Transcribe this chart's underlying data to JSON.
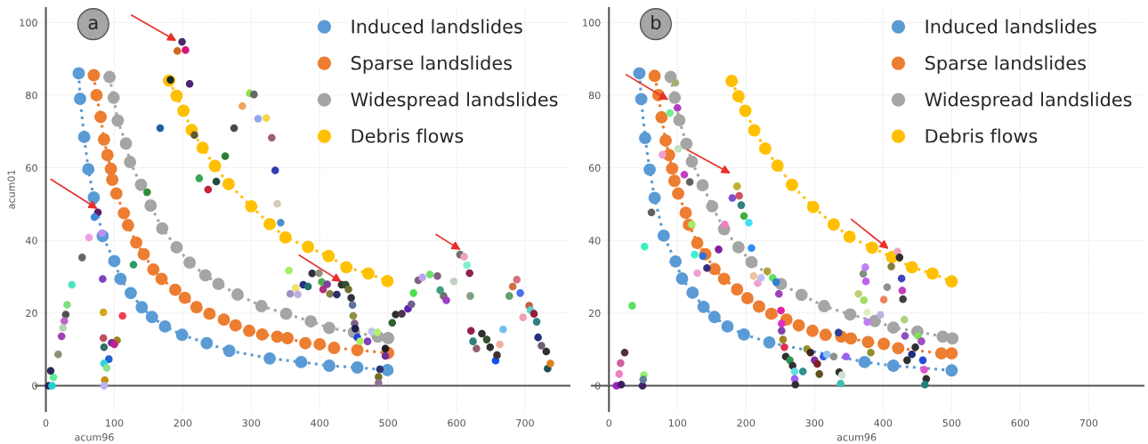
{
  "chart_data": [
    {
      "type": "scatter",
      "xlabel": "acum96",
      "ylabel": "acum01",
      "annotations": [
        "a"
      ],
      "xlim": [
        -15,
        765
      ],
      "ylim": [
        -7,
        104
      ],
      "xticks": [
        0,
        100,
        200,
        300,
        400,
        500,
        600,
        700
      ],
      "yticks": [
        0,
        20,
        40,
        60,
        80,
        100
      ],
      "grid": true,
      "legend": "top right",
      "marker": "circle",
      "line_style": "dotted",
      "series": [
        {
          "name": "Induced landslides",
          "type": "line",
          "color": "#5b9bd5",
          "x": [
            48,
            50,
            56,
            62,
            70,
            83,
            100,
            109,
            124,
            140,
            155,
            174,
            199,
            235,
            268,
            327,
            373,
            414,
            455,
            499
          ],
          "values": [
            86,
            79,
            68.5,
            59.6,
            51.8,
            41.2,
            34.3,
            29.4,
            25.5,
            21.6,
            18.9,
            16.3,
            14,
            11.7,
            9.6,
            7.5,
            6.5,
            5.5,
            5,
            4.3
          ]
        },
        {
          "name": "Sparse landslides",
          "type": "line",
          "color": "#ed7d31",
          "x": [
            70,
            74,
            80,
            85,
            90,
            95,
            97,
            103,
            114,
            120,
            132,
            143,
            157,
            169,
            189,
            203,
            220,
            239,
            260,
            277,
            297,
            316,
            338,
            353,
            379,
            400,
            421,
            455,
            500
          ],
          "values": [
            85.5,
            80,
            74,
            67.8,
            63.5,
            59.7,
            56.7,
            52.9,
            47.5,
            44.2,
            39.4,
            36.2,
            32,
            29.4,
            26.4,
            24.2,
            21.6,
            19.8,
            18.2,
            16.6,
            15.1,
            14.1,
            13.5,
            13.1,
            11.7,
            11.4,
            10.4,
            9.8,
            9
          ]
        },
        {
          "name": "Widespread landslides",
          "type": "line",
          "color": "#a5a5a5",
          "x": [
            93,
            99,
            105,
            117,
            123,
            139,
            153,
            170,
            191,
            210,
            233,
            252,
            280,
            315,
            351,
            387,
            414,
            450,
            485,
            500
          ],
          "values": [
            85,
            79.3,
            73,
            66.7,
            61.6,
            55.3,
            49.6,
            43.3,
            38.1,
            33.9,
            30.4,
            28,
            25.1,
            21.9,
            19.8,
            17.7,
            15.9,
            14.7,
            13.5,
            13.1
          ]
        },
        {
          "name": "Debris flows",
          "type": "line",
          "color": "#ffc000",
          "x": [
            180,
            191,
            201,
            213,
            229,
            247,
            267,
            300,
            327,
            350,
            383,
            413,
            439,
            471,
            499
          ],
          "values": [
            84,
            79.8,
            75.7,
            70.4,
            65.5,
            60.5,
            55.5,
            49.4,
            44.5,
            40.8,
            38.2,
            35.7,
            32.6,
            30.9,
            28.8
          ]
        },
        {
          "x": [
            199,
            192,
            204,
            182,
            210,
            167,
            217,
            262,
            249,
            224,
            237,
            298,
            304,
            287,
            310,
            322,
            275,
            330,
            335,
            338,
            343,
            148,
            76,
            71,
            63,
            82,
            53,
            128,
            83,
            38,
            31,
            29,
            27,
            25,
            23,
            18,
            11,
            7,
            4,
            9,
            84,
            112,
            84,
            104,
            85,
            96,
            100,
            92,
            85,
            89,
            86,
            85,
            355,
            365,
            357,
            368,
            389,
            399,
            376,
            383,
            403,
            411,
            405,
            415,
            425,
            432,
            438,
            442,
            446,
            448,
            449,
            451,
            452,
            455,
            459,
            470,
            476,
            484,
            488,
            486,
            486,
            496,
            496,
            506,
            511,
            520,
            529,
            534,
            537,
            544,
            550,
            561,
            572,
            576,
            581,
            585,
            596,
            605,
            611,
            615,
            619,
            620,
            621,
            624,
            629,
            637,
            644,
            649,
            657,
            659,
            663,
            668,
            677,
            682,
            688,
            693,
            697,
            706,
            708,
            713,
            717,
            719,
            724,
            731,
            733,
            737
          ],
          "values": [
            94.7,
            92.2,
            92.4,
            84.2,
            83.1,
            70.9,
            69,
            63.2,
            56.2,
            57.1,
            54,
            80.5,
            80.2,
            77,
            73.5,
            73.7,
            70.9,
            68.3,
            59.3,
            50.1,
            44.9,
            53.3,
            47.7,
            46.4,
            40.8,
            42,
            35.3,
            33.3,
            29.4,
            27.8,
            22.3,
            19.6,
            17.8,
            15.9,
            13.6,
            8.6,
            2.3,
            4.1,
            0,
            0,
            20.2,
            19.2,
            13.1,
            12.5,
            10.6,
            11.8,
            11.4,
            7.3,
            6.1,
            4.9,
            1.5,
            0,
            31.7,
            26.9,
            25.3,
            25.1,
            30.9,
            31,
            27.8,
            27.3,
            28.6,
            27.9,
            26.5,
            25.3,
            25.1,
            27.8,
            27.8,
            26.5,
            24.2,
            22.2,
            19.2,
            17.1,
            15.7,
            13.3,
            12.2,
            12.2,
            14.9,
            14.7,
            4.5,
            2.4,
            0.8,
            10.2,
            8.2,
            17.3,
            19.6,
            19.8,
            21.2,
            22.4,
            25.5,
            29,
            29.8,
            30.6,
            30.2,
            26.3,
            24.7,
            23.5,
            28.7,
            36.1,
            35.5,
            33.2,
            31,
            24.7,
            15.1,
            12.2,
            10.2,
            14.3,
            12.7,
            10.6,
            6.9,
            8.4,
            11.4,
            15.5,
            24.7,
            27.3,
            29.2,
            25.5,
            18.8,
            22,
            20.8,
            19.8,
            17.6,
            13.3,
            11,
            9.4,
            4.7,
            6.1
          ],
          "colors": [
            "#4b2a6b",
            "#d2691e",
            "#d6137a",
            "#1e2b24",
            "#4a2470",
            "#1f5fa8",
            "#5e5a2a",
            "#2e7d32",
            "#234a45",
            "#3aa655",
            "#c2273a",
            "#8ee04a",
            "#666666",
            "#f2a35e",
            "#8fa8f0",
            "#f5d547",
            "#4a4a4a",
            "#a0606e",
            "#3040b0",
            "#d8c8b8",
            "#4a90d0",
            "#2e8b3a",
            "#5a1a6a",
            "#3a8ae0",
            "#f0a0e0",
            "#c090f0",
            "#666666",
            "#2e9a6a",
            "#8040c0",
            "#50e0c0",
            "#80e080",
            "#505050",
            "#c060d0",
            "#b0d8b0",
            "#a040b0",
            "#909070",
            "#60f090",
            "#2a2a5a",
            "#28285a",
            "#20d0d0",
            "#d0a820",
            "#f04050",
            "#c05060",
            "#a08020",
            "#307060",
            "#7030a0",
            "#c02090",
            "#2060d0",
            "#30d0e0",
            "#90e090",
            "#c09010",
            "#c0b0f0",
            "#a0f060",
            "#f0e070",
            "#a090c0",
            "#c0b0e0",
            "#303040",
            "#909080",
            "#283080",
            "#207070",
            "#50b050",
            "#8040a0",
            "#b03080",
            "#808040",
            "#283070",
            "#303030",
            "#305030",
            "#707030",
            "#303040",
            "#6070a0",
            "#909040",
            "#806080",
            "#202050",
            "#2040e0",
            "#b0f060",
            "#8040c0",
            "#c0c0f0",
            "#b0f070",
            "#303070",
            "#707020",
            "#907090",
            "#202020",
            "#7030a0",
            "#306030",
            "#303030",
            "#503050",
            "#6020b0",
            "#706090",
            "#50e050",
            "#806080",
            "#c0a0f0",
            "#70e070",
            "#806080",
            "#40a080",
            "#707070",
            "#a040c0",
            "#c0d0c0",
            "#707070",
            "#f0a0c0",
            "#80f0d0",
            "#902050",
            "#80a080",
            "#902050",
            "#308080",
            "#906070",
            "#303030",
            "#305030",
            "#303030",
            "#1050f0",
            "#403030",
            "#f0b0a0",
            "#70c0f0",
            "#60a070",
            "#d07040",
            "#d07080",
            "#5070f0",
            "#f0a0b0",
            "#c06040",
            "#60d0d0",
            "#902040",
            "#308080",
            "#203080",
            "#706070",
            "#303030",
            "#205050",
            "#e08020"
          ]
        }
      ]
    },
    {
      "type": "scatter",
      "xlabel": "acum96",
      "annotations": [
        "b"
      ],
      "xlim": [
        -25,
        780
      ],
      "ylim": [
        -7,
        104
      ],
      "xticks": [
        0,
        100,
        200,
        300,
        400,
        500,
        600,
        700
      ],
      "yticks": [
        0,
        20,
        40,
        60,
        80,
        100
      ],
      "grid": true,
      "legend": "top right",
      "marker": "circle",
      "line_style": "dotted",
      "series": [
        {
          "name": "Induced landslides",
          "type": "line",
          "color": "#5b9bd5",
          "x": [
            44.4,
            47.2,
            52.8,
            59.4,
            66.7,
            80,
            97.2,
            106.7,
            122,
            138,
            154,
            173,
            197,
            234,
            373,
            415,
            500
          ],
          "values": [
            86,
            78.9,
            68.2,
            59.5,
            51.7,
            41.3,
            34.2,
            29.5,
            25.6,
            21.7,
            18.9,
            16.3,
            14.1,
            11.9,
            6.5,
            5.5,
            4.2
          ]
        },
        {
          "name": "Sparse landslides",
          "type": "line",
          "color": "#ed7d31",
          "x": [
            66.7,
            72.2,
            76.7,
            82.8,
            87.8,
            92.2,
            95.6,
            101,
            112,
            116.7,
            128.9,
            140.6,
            154,
            168,
            187,
            202,
            219,
            237,
            259,
            277,
            297,
            316,
            339,
            353,
            378,
            401,
            422,
            485,
            500
          ],
          "values": [
            85.3,
            80,
            73.9,
            67.5,
            63.5,
            59.8,
            56.4,
            52.9,
            47.6,
            44.3,
            39.3,
            36.2,
            32.1,
            29.4,
            26.5,
            24.1,
            21.8,
            19.8,
            18.2,
            16.6,
            15.1,
            14,
            13.5,
            13,
            12,
            11.5,
            10.3,
            8.9,
            8.9
          ]
        },
        {
          "name": "Widespread landslides",
          "type": "line",
          "color": "#a5a5a5",
          "x": [
            90,
            96,
            102.8,
            113,
            121,
            136.7,
            150.6,
            168,
            189,
            208,
            251,
            281,
            314,
            352,
            388,
            415,
            450,
            487,
            501
          ],
          "values": [
            85,
            79.3,
            73.1,
            66.6,
            61.7,
            55.2,
            49.4,
            43.1,
            38.1,
            34,
            28,
            25,
            21.9,
            19.6,
            17.8,
            16,
            14.9,
            13.5,
            13
          ]
        },
        {
          "name": "Debris flows",
          "type": "line",
          "color": "#ffc000",
          "x": [
            179,
            189,
            199,
            212,
            228,
            246,
            267,
            298,
            328,
            351,
            384,
            413,
            442,
            472,
            500
          ],
          "values": [
            83.9,
            79.7,
            75.7,
            70.3,
            65.3,
            60.6,
            55.3,
            49.2,
            44.4,
            41,
            38,
            35.4,
            32.6,
            30.9,
            28.7
          ]
        },
        {
          "x": [
            97,
            89,
            100,
            78,
            101,
            110,
            118,
            62,
            52,
            34,
            23,
            17,
            15,
            11,
            18,
            49,
            51,
            50,
            121,
            125,
            137,
            143,
            129,
            160,
            169,
            187,
            180,
            190,
            193,
            197,
            204,
            208,
            211,
            217,
            222,
            231,
            239,
            244,
            248,
            251,
            252,
            252,
            254,
            256,
            258,
            264,
            268,
            271,
            271,
            272,
            283,
            289,
            294,
            300,
            304,
            307,
            313,
            318,
            328,
            336,
            338,
            340,
            335,
            346,
            364,
            371,
            374,
            375,
            372,
            377,
            377,
            382,
            396,
            401,
            406,
            412,
            421,
            424,
            427,
            428,
            429,
            431,
            432,
            435,
            442,
            447,
            451,
            456,
            458,
            460,
            463,
            461
          ],
          "values": [
            83.4,
            75.1,
            76.5,
            63.6,
            65.2,
            58.1,
            56.1,
            47.7,
            38.3,
            22,
            9.1,
            6.2,
            3.2,
            0,
            0.3,
            0,
            2.9,
            1.7,
            44.4,
            36.1,
            35.7,
            32.4,
            31,
            37.5,
            44.4,
            54.9,
            51.7,
            52.3,
            49.7,
            46.7,
            44.9,
            37.9,
            30.2,
            28.2,
            29.7,
            31.5,
            29.7,
            28.5,
            25.3,
            20.7,
            17.1,
            15.1,
            12.7,
            10.6,
            8,
            7,
            5.5,
            3.9,
            1.9,
            0.3,
            3.9,
            10.1,
            9.1,
            7,
            6,
            3.2,
            8,
            8.6,
            8,
            3.7,
            0.6,
            2.9,
            14.6,
            8,
            25.3,
            30.8,
            32.6,
            28.7,
            23.5,
            20.2,
            17.5,
            9.1,
            19.5,
            23.7,
            27.1,
            32.8,
            36.9,
            35.3,
            29.5,
            26.2,
            23.8,
            18.2,
            13.7,
            7,
            8.6,
            10.6,
            13.7,
            12.2,
            7,
            4.4,
            1.9,
            0.3
          ],
          "colors": [
            "#a0b070",
            "#70f090",
            "#b040c0",
            "#f0a0d0",
            "#c0e0c0",
            "#c040c0",
            "#606060",
            "#606060",
            "#40f0c0",
            "#60e060",
            "#503040",
            "#d060a0",
            "#f080c0",
            "#a020c0",
            "#402060",
            "#402060",
            "#90f070",
            "#6080a0",
            "#a0f070",
            "#40f0d0",
            "#3070e0",
            "#303080",
            "#f0a0d0",
            "#8020a0",
            "#f080c0",
            "#c0b030",
            "#8050d0",
            "#d05060",
            "#308080",
            "#40b040",
            "#40e0f0",
            "#3090f0",
            "#f0c0a0",
            "#f0a0d0",
            "#c0c0f0",
            "#b0a040",
            "#60e060",
            "#3080d0",
            "#a040c0",
            "#e020a0",
            "#e030c0",
            "#8040b0",
            "#a08020",
            "#e03050",
            "#303030",
            "#309050",
            "#303030",
            "#60e0e0",
            "#a060f0",
            "#303030",
            "#309090",
            "#909030",
            "#402020",
            "#8030a0",
            "#802020",
            "#605020",
            "#3060e0",
            "#90c0f0",
            "#909090",
            "#303030",
            "#40c0b0",
            "#d0e0d0",
            "#304090",
            "#a060f0",
            "#c0d070",
            "#809080",
            "#c080f0",
            "#c060f0",
            "#a0e060",
            "#e0f0c0",
            "#c080f0",
            "#909030",
            "#c0b0e0",
            "#f08060",
            "#909090",
            "#808040",
            "#f0a0c0",
            "#303030",
            "#4040c0",
            "#c040c0",
            "#404040",
            "#b0d080",
            "#9050c0",
            "#303030",
            "#203080",
            "#303030",
            "#80e060",
            "#a050c0",
            "#2050d0",
            "#e050d0",
            "#303030",
            "#208080"
          ]
        }
      ]
    }
  ]
}
